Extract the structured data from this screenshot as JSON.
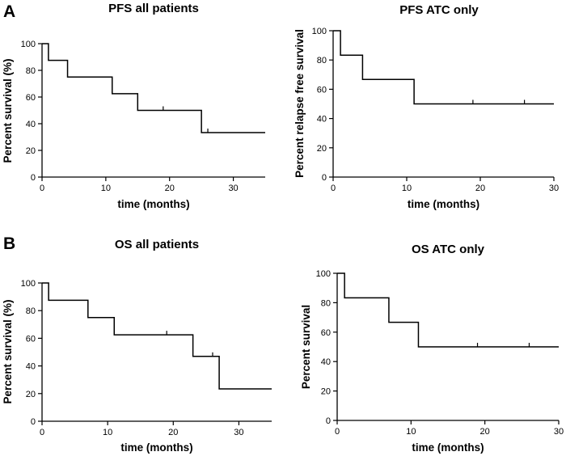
{
  "figure": {
    "panel_letters": [
      "A",
      "B"
    ]
  },
  "chart_data": [
    {
      "type": "line",
      "subtype": "kaplan-meier-step",
      "title": "PFS all patients",
      "xlabel": "time (months)",
      "ylabel": "Percent survival (%)",
      "xlim": [
        0,
        35
      ],
      "ylim": [
        0,
        100
      ],
      "xticks": [
        0,
        10,
        20,
        30
      ],
      "yticks": [
        0,
        20,
        40,
        60,
        80,
        100
      ],
      "grid": false,
      "series": [
        {
          "steps": [
            [
              0,
              100
            ],
            [
              1,
              87.5
            ],
            [
              4,
              75
            ],
            [
              11,
              62.5
            ],
            [
              15,
              50
            ],
            [
              25,
              33.3
            ]
          ],
          "end_x": 35,
          "censored": [
            [
              19,
              50
            ],
            [
              26,
              33.3
            ]
          ]
        }
      ]
    },
    {
      "type": "line",
      "subtype": "kaplan-meier-step",
      "title": "PFS ATC only",
      "xlabel": "time (months)",
      "ylabel": "Percent relapse free survival",
      "xlim": [
        0,
        30
      ],
      "ylim": [
        0,
        100
      ],
      "xticks": [
        0,
        10,
        20,
        30
      ],
      "yticks": [
        0,
        20,
        40,
        60,
        80,
        100
      ],
      "grid": false,
      "series": [
        {
          "steps": [
            [
              0,
              100
            ],
            [
              1,
              83.3
            ],
            [
              4,
              66.7
            ],
            [
              11,
              50
            ]
          ],
          "end_x": 30,
          "censored": [
            [
              19,
              50
            ],
            [
              26,
              50
            ]
          ]
        }
      ]
    },
    {
      "type": "line",
      "subtype": "kaplan-meier-step",
      "title": "OS all patients",
      "xlabel": "time (months)",
      "ylabel": "Percent survival (%)",
      "xlim": [
        0,
        35
      ],
      "ylim": [
        0,
        100
      ],
      "xticks": [
        0,
        10,
        20,
        30
      ],
      "yticks": [
        0,
        20,
        40,
        60,
        80,
        100
      ],
      "grid": false,
      "series": [
        {
          "steps": [
            [
              0,
              100
            ],
            [
              1,
              87.5
            ],
            [
              7,
              75
            ],
            [
              11,
              62.5
            ],
            [
              23,
              46.9
            ],
            [
              27,
              23.4
            ]
          ],
          "end_x": 35,
          "censored": [
            [
              19,
              62.5
            ],
            [
              26,
              46.9
            ]
          ]
        }
      ]
    },
    {
      "type": "line",
      "subtype": "kaplan-meier-step",
      "title": "OS ATC only",
      "xlabel": "time (months)",
      "ylabel": "Percent survival",
      "xlim": [
        0,
        30
      ],
      "ylim": [
        0,
        100
      ],
      "xticks": [
        0,
        10,
        20,
        30
      ],
      "yticks": [
        0,
        20,
        40,
        60,
        80,
        100
      ],
      "grid": false,
      "series": [
        {
          "steps": [
            [
              0,
              100
            ],
            [
              1,
              83.3
            ],
            [
              7,
              66.7
            ],
            [
              11,
              50
            ]
          ],
          "end_x": 30,
          "censored": [
            [
              19,
              50
            ],
            [
              26,
              50
            ]
          ]
        }
      ]
    }
  ]
}
